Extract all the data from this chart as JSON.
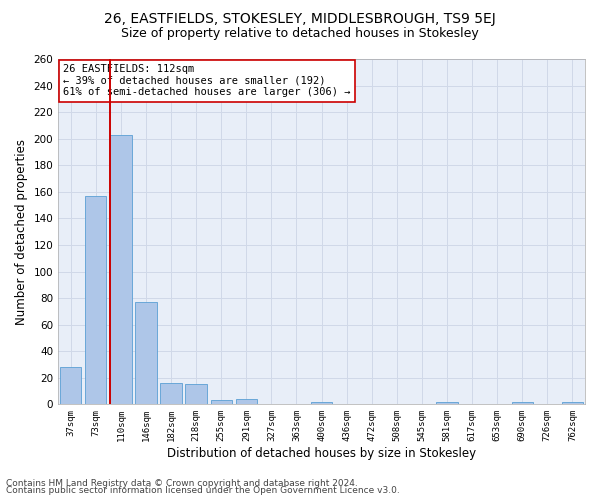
{
  "title": "26, EASTFIELDS, STOKESLEY, MIDDLESBROUGH, TS9 5EJ",
  "subtitle": "Size of property relative to detached houses in Stokesley",
  "xlabel": "Distribution of detached houses by size in Stokesley",
  "ylabel": "Number of detached properties",
  "bar_labels": [
    "37sqm",
    "73sqm",
    "110sqm",
    "146sqm",
    "182sqm",
    "218sqm",
    "255sqm",
    "291sqm",
    "327sqm",
    "363sqm",
    "400sqm",
    "436sqm",
    "472sqm",
    "508sqm",
    "545sqm",
    "581sqm",
    "617sqm",
    "653sqm",
    "690sqm",
    "726sqm",
    "762sqm"
  ],
  "bar_values": [
    28,
    157,
    203,
    77,
    16,
    15,
    3,
    4,
    0,
    0,
    2,
    0,
    0,
    0,
    0,
    2,
    0,
    0,
    2,
    0,
    2
  ],
  "bar_color": "#aec6e8",
  "bar_edge_color": "#5a9fd4",
  "vline_index": 2,
  "vline_color": "#cc0000",
  "annotation_text": "26 EASTFIELDS: 112sqm\n← 39% of detached houses are smaller (192)\n61% of semi-detached houses are larger (306) →",
  "annotation_box_color": "#ffffff",
  "annotation_box_edge": "#cc0000",
  "ylim": [
    0,
    260
  ],
  "yticks": [
    0,
    20,
    40,
    60,
    80,
    100,
    120,
    140,
    160,
    180,
    200,
    220,
    240,
    260
  ],
  "grid_color": "#d0d8e8",
  "background_color": "#e8eef8",
  "footer_line1": "Contains HM Land Registry data © Crown copyright and database right 2024.",
  "footer_line2": "Contains public sector information licensed under the Open Government Licence v3.0.",
  "title_fontsize": 10,
  "subtitle_fontsize": 9,
  "xlabel_fontsize": 8.5,
  "ylabel_fontsize": 8.5,
  "annotation_fontsize": 7.5,
  "footer_fontsize": 6.5
}
